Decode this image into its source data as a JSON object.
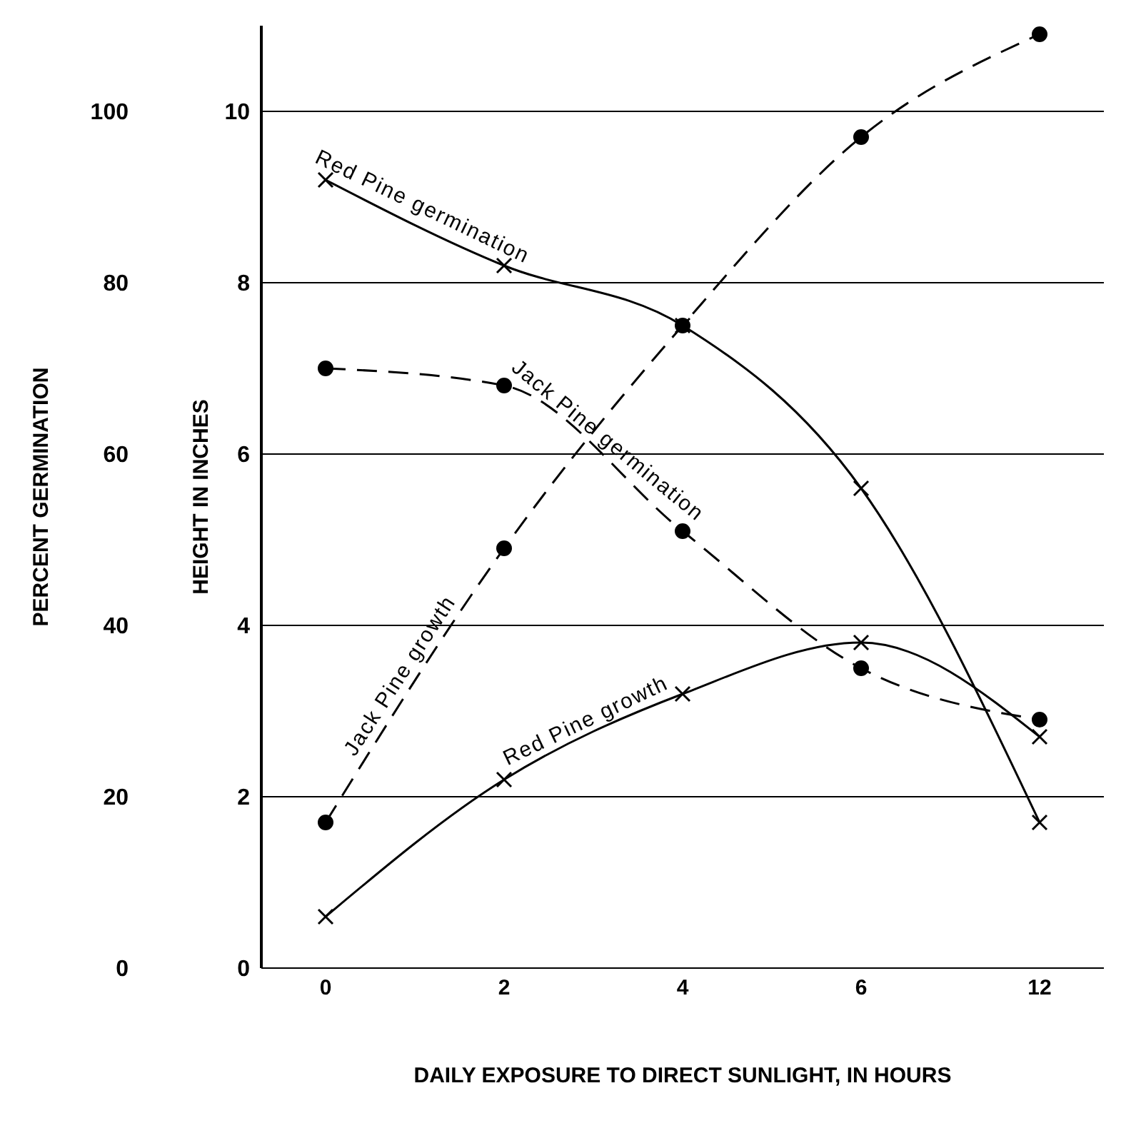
{
  "chart_data": {
    "type": "line",
    "xlabel": "DAILY EXPOSURE TO DIRECT SUNLIGHT, IN HOURS",
    "ylabel": "HEIGHT IN INCHES",
    "y2label": "PERCENT GERMINATION",
    "categories": [
      "0",
      "2",
      "4",
      "6",
      "12"
    ],
    "ylim": [
      0,
      11
    ],
    "yticks": [
      0,
      2,
      4,
      6,
      8,
      10
    ],
    "y2lim": [
      0,
      110
    ],
    "y2ticks": [
      0,
      20,
      40,
      60,
      80,
      100
    ],
    "grid": "y",
    "legend": false,
    "series": [
      {
        "name": "Red Pine germination",
        "color": "#000000",
        "marker": "cross",
        "line_style": "solid",
        "axis": "y2",
        "values": [
          92,
          82,
          75,
          56,
          17
        ]
      },
      {
        "name": "Jack Pine germination",
        "color": "#000000",
        "marker": "circle",
        "line_style": "dashed",
        "axis": "y2",
        "values": [
          70,
          68,
          51,
          35,
          29
        ]
      },
      {
        "name": "Jack Pine growth",
        "color": "#000000",
        "marker": "circle",
        "line_style": "dashed",
        "values": [
          1.7,
          4.9,
          7.5,
          9.7,
          10.9
        ]
      },
      {
        "name": "Red Pine growth",
        "color": "#000000",
        "marker": "cross",
        "line_style": "solid",
        "values": [
          0.6,
          2.2,
          3.2,
          3.8,
          2.7
        ]
      }
    ]
  }
}
